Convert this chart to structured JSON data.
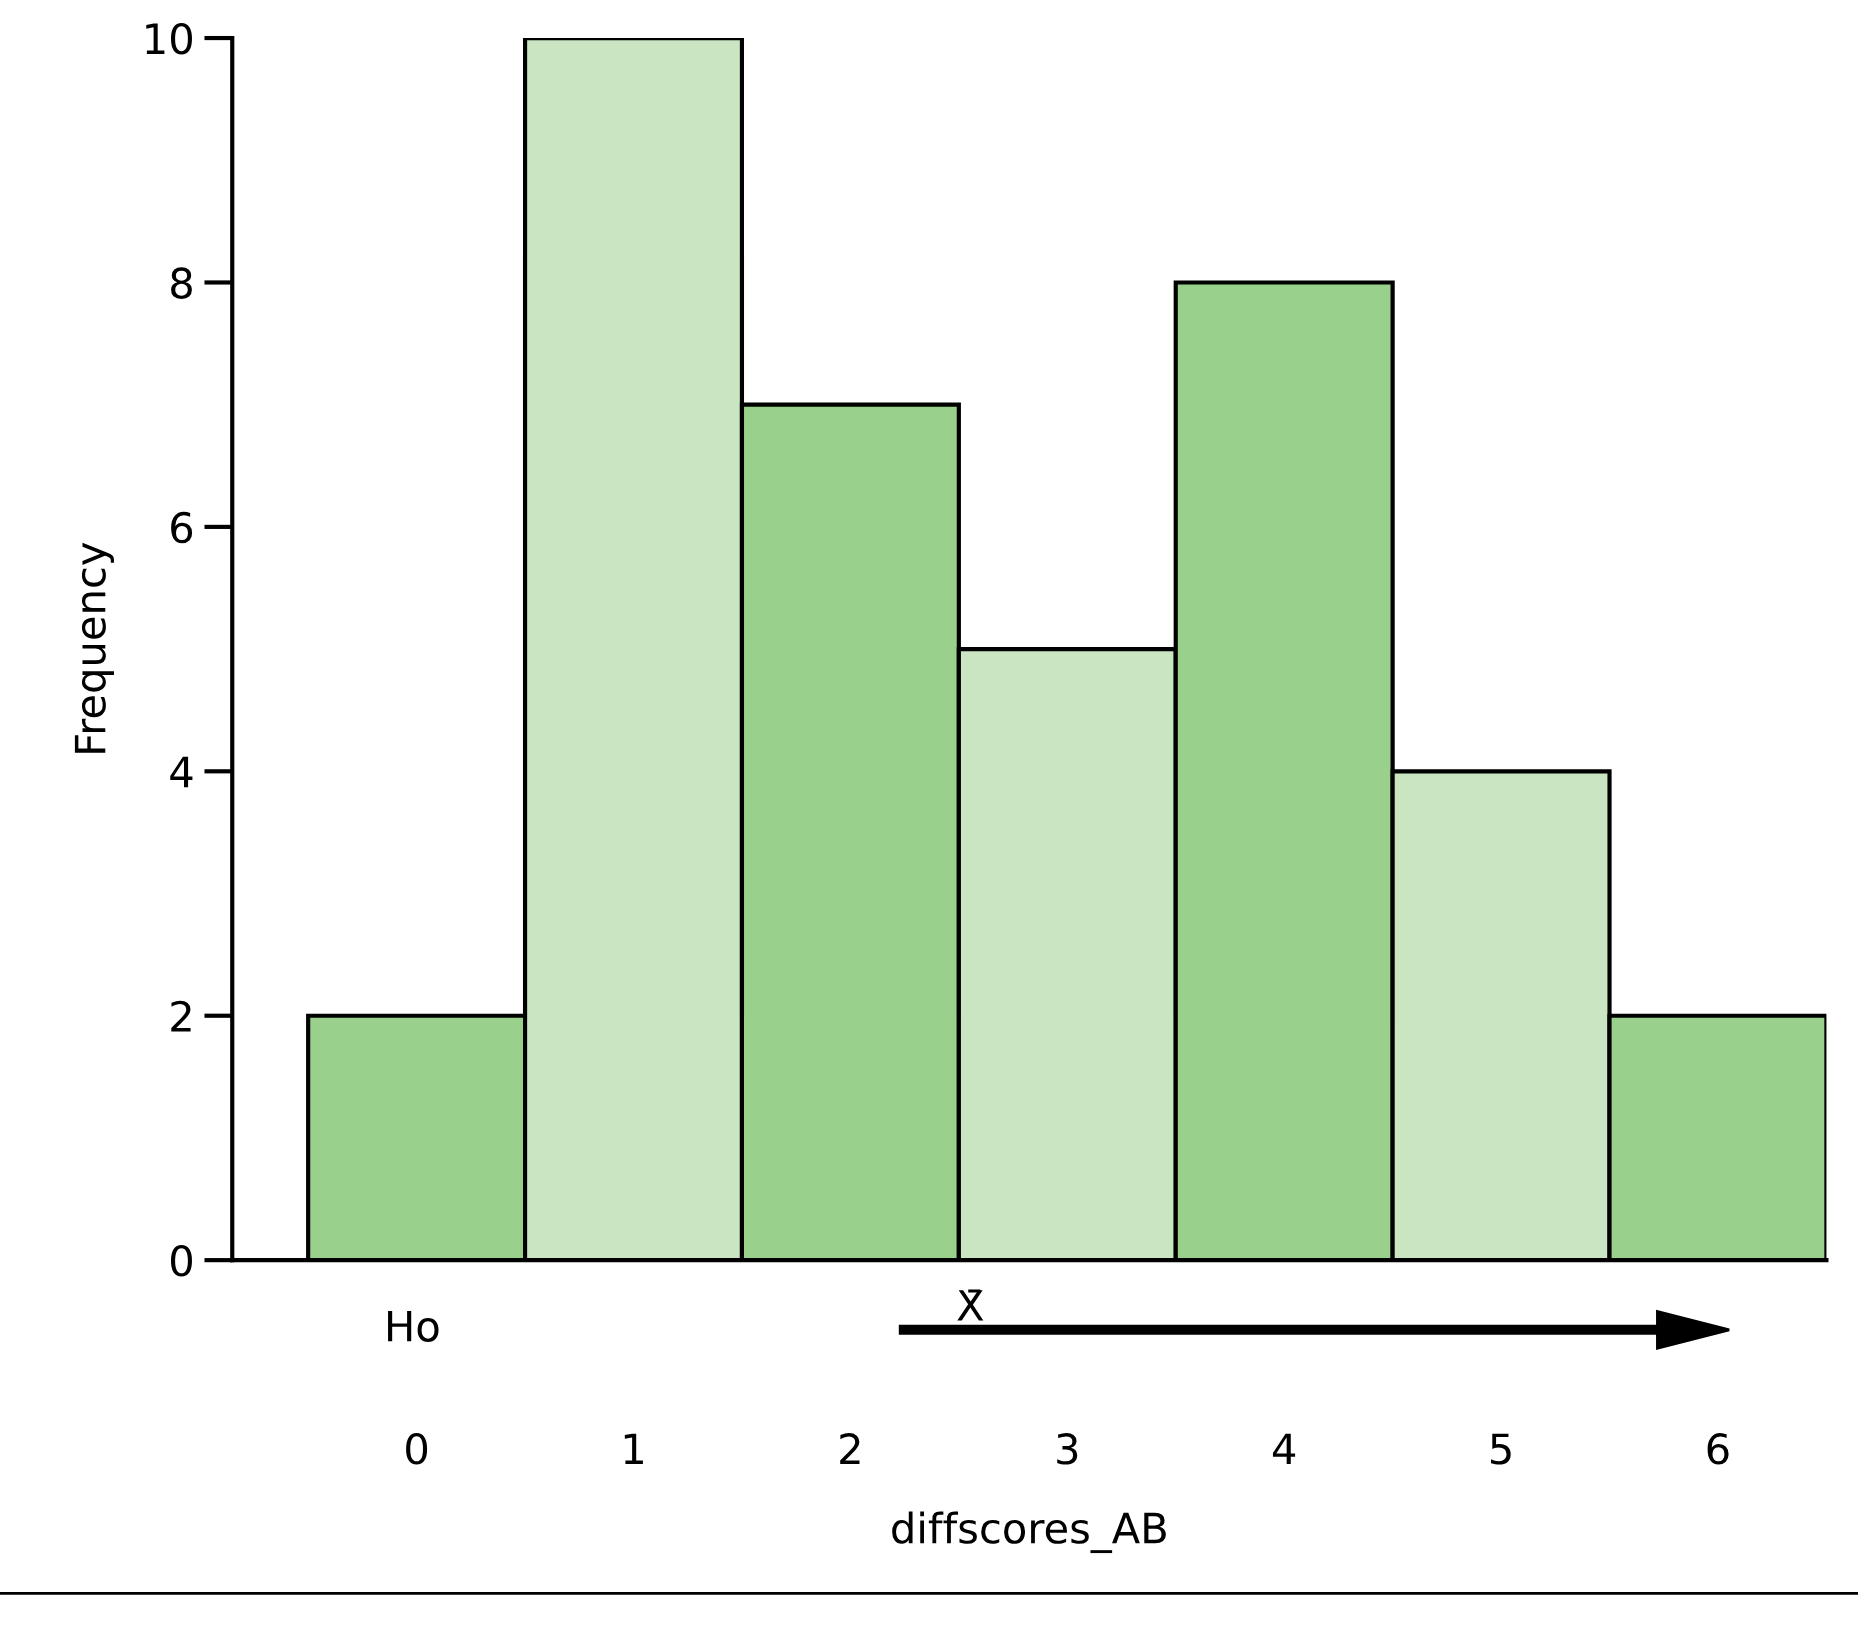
{
  "chart_data": {
    "type": "histogram",
    "xlabel": "diffscores_AB",
    "ylabel": "Frequency",
    "bins": [
      -0.5,
      0.5,
      1.5,
      2.5,
      3.5,
      4.5,
      5.5,
      6.5
    ],
    "values": [
      2,
      10,
      7,
      5,
      8,
      4,
      2
    ],
    "colors": [
      "#99d08b",
      "#c9e5c2",
      "#99d08b",
      "#c9e5c2",
      "#99d08b",
      "#c9e5c2",
      "#99d08b"
    ],
    "xlim": [
      -0.85,
      6.5
    ],
    "xticks": [
      0,
      1,
      2,
      3,
      4,
      5,
      6
    ],
    "ylim": [
      0,
      10
    ],
    "yticks": [
      0,
      2,
      4,
      6,
      8,
      10
    ],
    "grid": false,
    "annotations": [
      "Ho",
      "X̄"
    ]
  }
}
